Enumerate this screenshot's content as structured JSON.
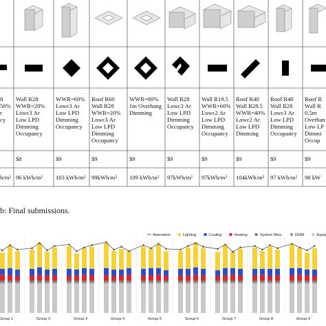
{
  "table": {
    "columns": [
      {
        "specs": [
          "8",
          "50%",
          "r",
          "cy"
        ],
        "energy": "h/m²"
      },
      {
        "specs": [
          "Wall R28",
          "WWR=20%",
          "Lowε3 Ar",
          "Low LPD",
          "Dimming",
          "Occupancy"
        ],
        "cost": "$8",
        "energy": "96 kWh/m²"
      },
      {
        "specs": [
          "WWR=60%",
          "Lowε3 Ar",
          "Low LPD",
          "Dimming",
          "Occupancy"
        ],
        "cost": "$9",
        "energy": "103 kWh/m²"
      },
      {
        "specs": [
          "Roof R60",
          "Wall R28",
          "WWR=20%",
          "Lowε3 Ar",
          "Low LPD",
          "Dimming",
          "Occupancy"
        ],
        "cost": "$9",
        "energy": "99kWh/m²"
      },
      {
        "specs": [
          "WWR=80%",
          "1m Overhang",
          "Dimming"
        ],
        "cost": "$9",
        "energy": "109 kWh/m²"
      },
      {
        "specs": [
          "Wall R28",
          "Lowε3 Ar",
          "Low LPD",
          "Dimming",
          "Occupancy"
        ],
        "cost": "$9",
        "energy": "97kWh/m²"
      },
      {
        "specs": [
          "Wall R19.5",
          "WWR=60%",
          "Lowε2 Ar",
          "Low LPD",
          "Dimming",
          "Occupancy"
        ],
        "cost": "$9",
        "energy": "97kWh/m²"
      },
      {
        "specs": [
          "Roof R40",
          "Wall R28.5",
          "WWR=40%",
          "Lowε2 Ar",
          "Low LPD",
          "Dimming"
        ],
        "cost": "$9",
        "energy": "104kWh/m²"
      },
      {
        "specs": [
          "Roof R40",
          "Wall R28",
          "Lowε3 Ar",
          "Low LPD",
          "Dimming",
          "Occupancy"
        ],
        "cost": "$9",
        "energy": "97 kWh/m²"
      },
      {
        "specs": [
          "Roof R",
          "Wall R",
          "0.5m",
          "Overhan",
          "Low LP",
          "Dimmi",
          "Occup"
        ],
        "cost": "$9",
        "energy": "98 kW"
      }
    ]
  },
  "caption": "b: Final submissions.",
  "chart_data": {
    "type": "stacked-bar",
    "groups": [
      "Group 1",
      "Group 2",
      "Group 3",
      "Group 4",
      "Group 5",
      "Group 6",
      "Group 7",
      "Group 8",
      "Group 9"
    ],
    "ylim": [
      0,
      100
    ],
    "series": [
      {
        "name": "Equipment",
        "color": "#c9c9c9",
        "values": [
          40,
          40,
          40,
          40,
          40,
          40,
          40,
          40,
          40,
          40,
          40,
          40,
          40,
          40,
          40,
          40,
          40,
          40,
          40,
          40,
          40,
          40,
          40,
          40,
          40,
          40,
          40,
          40,
          40,
          40,
          40,
          40,
          40,
          40,
          40,
          40
        ]
      },
      {
        "name": "DHW",
        "color": "#9e9e9e",
        "values": [
          2,
          2,
          2,
          2,
          2,
          2,
          2,
          2,
          2,
          2,
          2,
          2,
          2,
          2,
          2,
          2,
          2,
          2,
          2,
          2,
          2,
          2,
          2,
          2,
          2,
          2,
          2,
          2,
          2,
          2,
          2,
          2,
          2,
          2,
          2,
          2
        ]
      },
      {
        "name": "System Misc.",
        "color": "#7a7a7a",
        "values": [
          2,
          2,
          2,
          2,
          2,
          2,
          2,
          2,
          2,
          2,
          2,
          2,
          2,
          2,
          2,
          2,
          2,
          2,
          2,
          2,
          2,
          2,
          2,
          2,
          2,
          2,
          2,
          2,
          2,
          2,
          2,
          2,
          2,
          2,
          2,
          2
        ]
      },
      {
        "name": "Heating",
        "color": "#d9262b",
        "values": [
          7,
          8,
          7,
          6,
          7,
          8,
          7,
          7,
          6,
          7,
          8,
          7,
          7,
          6,
          7,
          8,
          7,
          7,
          8,
          6,
          7,
          7,
          8,
          7,
          6,
          7,
          8,
          7,
          7,
          8,
          6,
          7,
          7,
          8,
          7,
          6
        ]
      },
      {
        "name": "Cooling",
        "color": "#2c4fc9",
        "values": [
          9,
          8,
          10,
          9,
          9,
          10,
          8,
          9,
          10,
          8,
          9,
          9,
          10,
          9,
          8,
          9,
          9,
          10,
          9,
          8,
          9,
          9,
          10,
          9,
          8,
          10,
          9,
          9,
          9,
          8,
          10,
          9,
          10,
          9,
          8,
          9
        ]
      },
      {
        "name": "Lighting",
        "color": "#f5d23c",
        "values": [
          28,
          22,
          30,
          25,
          26,
          33,
          24,
          29,
          31,
          22,
          27,
          30,
          34,
          25,
          28,
          23,
          30,
          27,
          32,
          26,
          24,
          29,
          33,
          28,
          25,
          31,
          22,
          27,
          29,
          24,
          30,
          26,
          32,
          27,
          23,
          29
        ]
      }
    ],
    "line": {
      "name": "Aberration",
      "color": "#555555",
      "values": [
        90,
        85,
        92,
        86,
        88,
        95,
        85,
        91,
        93,
        84,
        89,
        92,
        96,
        86,
        90,
        84,
        92,
        88,
        94,
        87,
        86,
        91,
        95,
        90,
        87,
        93,
        83,
        89,
        91,
        86,
        92,
        88,
        94,
        89,
        85,
        91
      ]
    },
    "legend_order": [
      "line",
      5,
      4,
      3,
      2,
      1,
      0
    ]
  }
}
